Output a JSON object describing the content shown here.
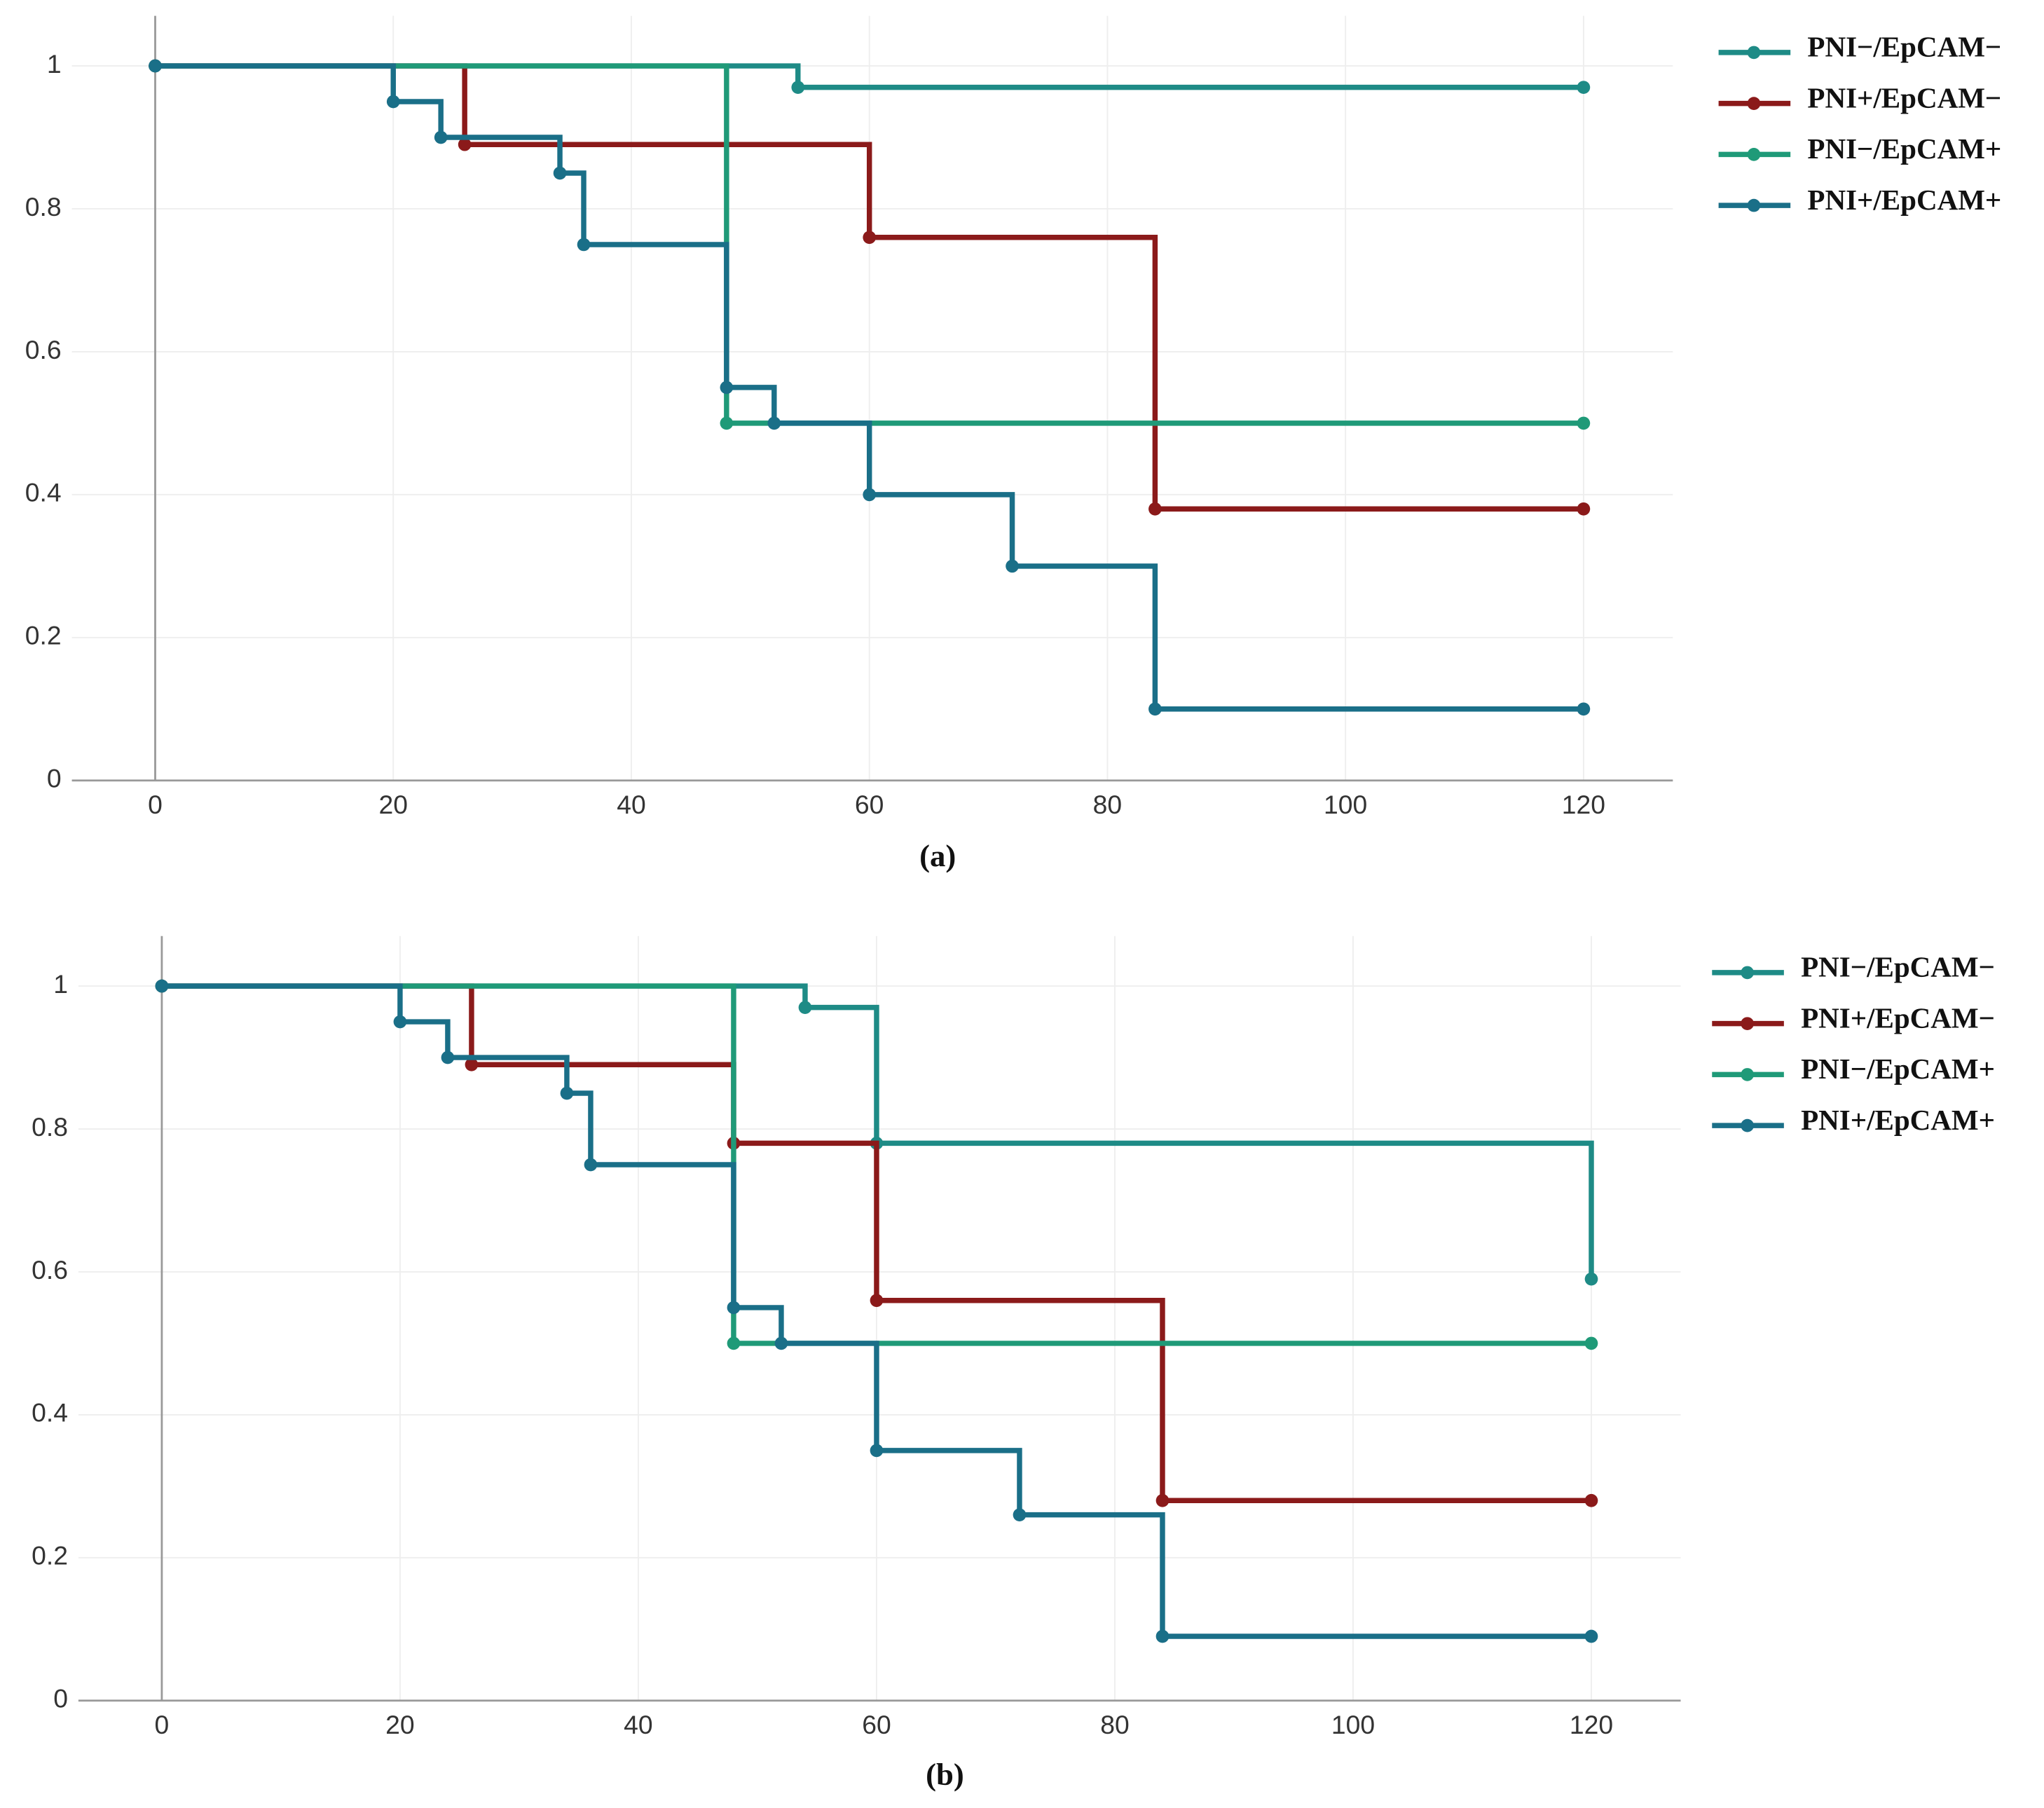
{
  "chart_data": [
    {
      "type": "step",
      "caption": "(a)",
      "xlim": [
        -7,
        127.5
      ],
      "ylim": [
        0,
        1.07
      ],
      "xticks": [
        0,
        20,
        40,
        60,
        80,
        100,
        120
      ],
      "yticks": [
        0,
        0.2,
        0.4,
        0.6,
        0.8,
        1
      ],
      "grid": true,
      "legend": "right",
      "series": [
        {
          "name": "PNI−/EpCAM−",
          "color": "#1e8b86",
          "x": [
            0,
            54,
            120
          ],
          "values": [
            1,
            0.97,
            0.97
          ]
        },
        {
          "name": "PNI+/EpCAM−",
          "color": "#8b1a1a",
          "x": [
            0,
            26,
            60,
            84,
            120
          ],
          "values": [
            1,
            0.89,
            0.76,
            0.38,
            0.38
          ]
        },
        {
          "name": "PNI−/EpCAM+",
          "color": "#1f9a78",
          "x": [
            0,
            48,
            120
          ],
          "values": [
            1,
            0.5,
            0.5
          ]
        },
        {
          "name": "PNI+/EpCAM+",
          "color": "#1a6f88",
          "x": [
            0,
            20,
            24,
            34,
            36,
            48,
            52,
            60,
            72,
            84,
            120
          ],
          "values": [
            1,
            0.95,
            0.9,
            0.85,
            0.75,
            0.55,
            0.5,
            0.4,
            0.3,
            0.1,
            0.1
          ]
        }
      ]
    },
    {
      "type": "step",
      "caption": "(b)",
      "xlim": [
        -7,
        127.5
      ],
      "ylim": [
        0,
        1.07
      ],
      "xticks": [
        0,
        20,
        40,
        60,
        80,
        100,
        120
      ],
      "yticks": [
        0,
        0.2,
        0.4,
        0.6,
        0.8,
        1
      ],
      "grid": true,
      "legend": "right",
      "series": [
        {
          "name": "PNI−/EpCAM−",
          "color": "#1e8b86",
          "x": [
            0,
            54,
            60,
            120
          ],
          "values": [
            1,
            0.97,
            0.78,
            0.59
          ]
        },
        {
          "name": "PNI+/EpCAM−",
          "color": "#8b1a1a",
          "x": [
            0,
            26,
            48,
            60,
            84,
            120
          ],
          "values": [
            1,
            0.89,
            0.78,
            0.56,
            0.28,
            0.28
          ]
        },
        {
          "name": "PNI−/EpCAM+",
          "color": "#1f9a78",
          "x": [
            0,
            48,
            120
          ],
          "values": [
            1,
            0.5,
            0.5
          ]
        },
        {
          "name": "PNI+/EpCAM+",
          "color": "#1a6f88",
          "x": [
            0,
            20,
            24,
            34,
            36,
            48,
            52,
            60,
            72,
            84,
            120
          ],
          "values": [
            1,
            0.95,
            0.9,
            0.85,
            0.75,
            0.55,
            0.5,
            0.35,
            0.26,
            0.09,
            0.09
          ]
        }
      ]
    }
  ]
}
